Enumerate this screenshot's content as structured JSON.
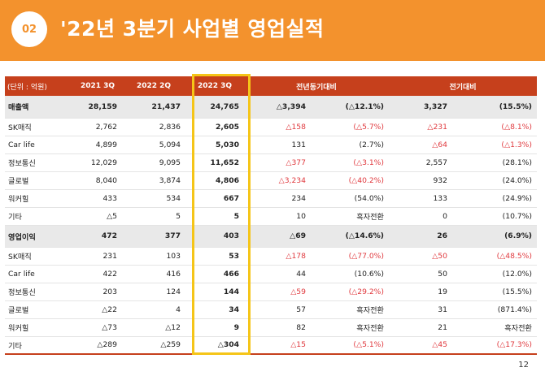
{
  "header": {
    "badge": "02",
    "title": "'22년 3분기 사업별 영업실적"
  },
  "table": {
    "columns": [
      "(단위 : 억원)",
      "2021 3Q",
      "2022 2Q",
      "2022 3Q",
      "전년동기대비",
      "",
      "전기대비",
      ""
    ],
    "rows": [
      {
        "cells": [
          "매출액",
          "28,159",
          "21,437",
          "24,765",
          "△3,394",
          "(△12.1%)",
          "3,327",
          "(15.5%)"
        ],
        "major": true,
        "neg": [
          false,
          false,
          false,
          false,
          false,
          false,
          false,
          false
        ]
      },
      {
        "cells": [
          "SK매직",
          "2,762",
          "2,836",
          "2,605",
          "△158",
          "(△5.7%)",
          "△231",
          "(△8.1%)"
        ],
        "major": false,
        "neg": [
          false,
          false,
          false,
          false,
          true,
          true,
          true,
          true
        ]
      },
      {
        "cells": [
          "Car life",
          "4,899",
          "5,094",
          "5,030",
          "131",
          "(2.7%)",
          "△64",
          "(△1.3%)"
        ],
        "major": false,
        "neg": [
          false,
          false,
          false,
          false,
          false,
          false,
          true,
          true
        ]
      },
      {
        "cells": [
          "정보통신",
          "12,029",
          "9,095",
          "11,652",
          "△377",
          "(△3.1%)",
          "2,557",
          "(28.1%)"
        ],
        "major": false,
        "neg": [
          false,
          false,
          false,
          false,
          true,
          true,
          false,
          false
        ]
      },
      {
        "cells": [
          "글로벌",
          "8,040",
          "3,874",
          "4,806",
          "△3,234",
          "(△40.2%)",
          "932",
          "(24.0%)"
        ],
        "major": false,
        "neg": [
          false,
          false,
          false,
          false,
          true,
          true,
          false,
          false
        ]
      },
      {
        "cells": [
          "워커힐",
          "433",
          "534",
          "667",
          "234",
          "(54.0%)",
          "133",
          "(24.9%)"
        ],
        "major": false,
        "neg": [
          false,
          false,
          false,
          false,
          false,
          false,
          false,
          false
        ]
      },
      {
        "cells": [
          "기타",
          "△5",
          "5",
          "5",
          "10",
          "흑자전환",
          "0",
          "(10.7%)"
        ],
        "major": false,
        "neg": [
          false,
          false,
          false,
          false,
          false,
          false,
          false,
          false
        ]
      },
      {
        "cells": [
          "영업이익",
          "472",
          "377",
          "403",
          "△69",
          "(△14.6%)",
          "26",
          "(6.9%)"
        ],
        "major": true,
        "neg": [
          false,
          false,
          false,
          false,
          false,
          false,
          false,
          false
        ]
      },
      {
        "cells": [
          "SK매직",
          "231",
          "103",
          "53",
          "△178",
          "(△77.0%)",
          "△50",
          "(△48.5%)"
        ],
        "major": false,
        "neg": [
          false,
          false,
          false,
          false,
          true,
          true,
          true,
          true
        ]
      },
      {
        "cells": [
          "Car life",
          "422",
          "416",
          "466",
          "44",
          "(10.6%)",
          "50",
          "(12.0%)"
        ],
        "major": false,
        "neg": [
          false,
          false,
          false,
          false,
          false,
          false,
          false,
          false
        ]
      },
      {
        "cells": [
          "정보통신",
          "203",
          "124",
          "144",
          "△59",
          "(△29.2%)",
          "19",
          "(15.5%)"
        ],
        "major": false,
        "neg": [
          false,
          false,
          false,
          false,
          true,
          true,
          false,
          false
        ]
      },
      {
        "cells": [
          "글로벌",
          "△22",
          "4",
          "34",
          "57",
          "흑자전환",
          "31",
          "(871.4%)"
        ],
        "major": false,
        "neg": [
          false,
          false,
          false,
          false,
          false,
          false,
          false,
          false
        ]
      },
      {
        "cells": [
          "워커힐",
          "△73",
          "△12",
          "9",
          "82",
          "흑자전환",
          "21",
          "흑자전환"
        ],
        "major": false,
        "neg": [
          false,
          false,
          false,
          false,
          false,
          false,
          false,
          false
        ]
      },
      {
        "cells": [
          "기타",
          "△289",
          "△259",
          "△304",
          "△15",
          "(△5.1%)",
          "△45",
          "(△17.3%)"
        ],
        "major": false,
        "neg": [
          false,
          false,
          false,
          false,
          true,
          true,
          true,
          true
        ]
      }
    ]
  },
  "footer": {
    "page_number": "12"
  },
  "colors": {
    "header": "#f3922d",
    "table_header": "#c6401c",
    "highlight": "#f5c518",
    "negative": "#e0393e"
  }
}
